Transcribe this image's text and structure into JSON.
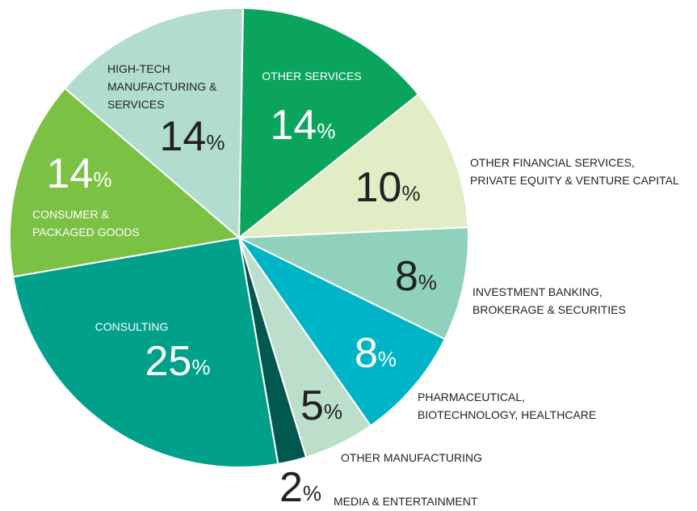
{
  "chart_data": {
    "type": "pie",
    "categories": [
      "OTHER SERVICES",
      "OTHER FINANCIAL SERVICES,\nPRIVATE EQUITY & VENTURE CAPITAL",
      "INVESTMENT BANKING,\nBROKERAGE & SECURITIES",
      "PHARMACEUTICAL,\nBIOTECHNOLOGY, HEALTHCARE",
      "OTHER MANUFACTURING",
      "MEDIA & ENTERTAINMENT",
      "CONSULTING",
      "CONSUMER &\nPACKAGED GOODS",
      "HIGH-TECH\nMANUFACTURING &\nSERVICES"
    ],
    "values": [
      14,
      10,
      8,
      8,
      5,
      2,
      25,
      14,
      14
    ],
    "value_labels": [
      "14%",
      "10%",
      "8%",
      "8%",
      "5%",
      "2%",
      "25%",
      "14%",
      "14%"
    ],
    "colors": [
      "#0aa45c",
      "#e1edc5",
      "#8fd1ba",
      "#00b4c8",
      "#bcdfcb",
      "#00584f",
      "#00a08b",
      "#7bc144",
      "#b2ddce"
    ]
  }
}
